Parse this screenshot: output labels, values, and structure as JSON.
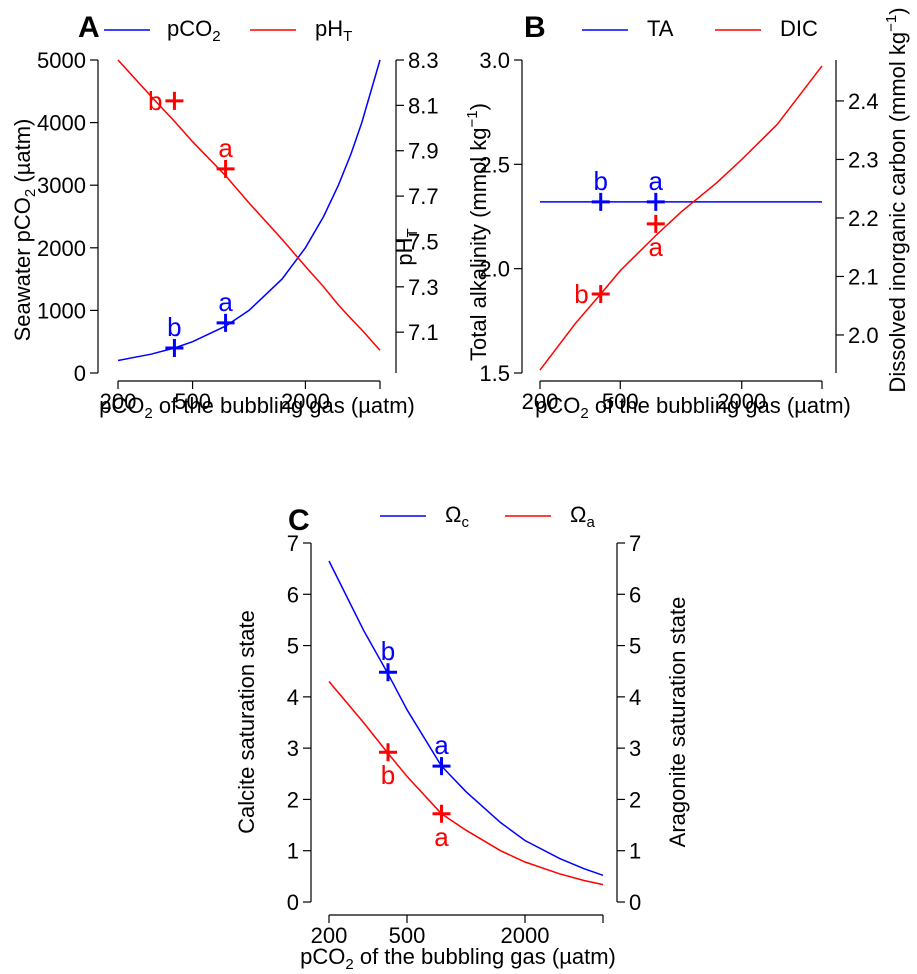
{
  "chart_data": [
    {
      "panel": "A",
      "type": "line",
      "x": [
        200,
        300,
        400,
        500,
        750,
        1000,
        1500,
        2000,
        2500,
        3000,
        3500,
        4000,
        5000
      ],
      "x_scale": "log",
      "xlabel_main": "pCO",
      "xlabel_sub": "2",
      "xlabel_rest": " of the bubbling gas (µatm)",
      "xticks": [
        200,
        500,
        2000
      ],
      "xtick_labels": [
        "200",
        "500",
        "2000"
      ],
      "ylabel_left": "Seawater pCO",
      "ylabel_left_sub": "2",
      "ylabel_left_rest": " (µatm)",
      "ylim_left": [
        0,
        5000
      ],
      "yticks_left": [
        "0",
        "1000",
        "2000",
        "3000",
        "4000",
        "5000"
      ],
      "ylabel_right": "pH",
      "ylabel_right_sub": "T",
      "ylim_right": [
        6.92,
        8.3
      ],
      "yticks_right": [
        "7.1",
        "7.3",
        "7.5",
        "7.7",
        "7.9",
        "8.1",
        "8.3"
      ],
      "series": [
        {
          "name": "pCO",
          "name_sub": "2",
          "color": "#0000ff",
          "axis": "left",
          "values": [
            200,
            300,
            400,
            500,
            750,
            1000,
            1500,
            2000,
            2500,
            3000,
            3500,
            4000,
            5000
          ]
        },
        {
          "name": "pH",
          "name_sub": "T",
          "color": "#ff0000",
          "axis": "right",
          "values": [
            8.3,
            8.14,
            8.03,
            7.94,
            7.79,
            7.67,
            7.51,
            7.39,
            7.3,
            7.22,
            7.16,
            7.11,
            7.02
          ]
        }
      ],
      "points": [
        {
          "label": "b",
          "x": 400,
          "y": 400,
          "axis": "left",
          "color": "#0000ff",
          "label_pos": "above"
        },
        {
          "label": "a",
          "x": 750,
          "y": 800,
          "axis": "left",
          "color": "#0000ff",
          "label_pos": "above"
        },
        {
          "label": "b",
          "x": 400,
          "y": 8.12,
          "axis": "right",
          "color": "#ff0000",
          "label_pos": "left"
        },
        {
          "label": "a",
          "x": 750,
          "y": 7.82,
          "axis": "right",
          "color": "#ff0000",
          "label_pos": "above"
        }
      ]
    },
    {
      "panel": "B",
      "type": "line",
      "x": [
        200,
        300,
        400,
        500,
        750,
        1000,
        1500,
        2000,
        3000,
        5000
      ],
      "x_scale": "log",
      "xlabel_main": "pCO",
      "xlabel_sub": "2",
      "xlabel_rest": " of the bubbling gas (µatm)",
      "xticks": [
        200,
        500,
        2000
      ],
      "xtick_labels": [
        "200",
        "500",
        "2000"
      ],
      "ylabel_left": "Total alkalinity (mmol kg",
      "ylabel_left_sup": "−1",
      "ylabel_left_rest": ")",
      "ylim_left": [
        1.5,
        3.0
      ],
      "yticks_left": [
        "1.5",
        "2.0",
        "2.5",
        "3.0"
      ],
      "ylabel_right": "Dissolved inorganic carbon (mmol kg",
      "ylabel_right_sup": "−1",
      "ylabel_right_rest": ")",
      "ylim_right": [
        1.935,
        2.47
      ],
      "yticks_right": [
        "2.0",
        "2.1",
        "2.2",
        "2.3",
        "2.4"
      ],
      "series": [
        {
          "name": "TA",
          "color": "#0000ff",
          "axis": "left",
          "values": [
            2.32,
            2.32,
            2.32,
            2.32,
            2.32,
            2.32,
            2.32,
            2.32,
            2.32,
            2.32
          ]
        },
        {
          "name": "DIC",
          "color": "#ff0000",
          "axis": "right",
          "values": [
            1.94,
            2.02,
            2.07,
            2.11,
            2.17,
            2.21,
            2.26,
            2.3,
            2.36,
            2.46
          ]
        }
      ],
      "points": [
        {
          "label": "b",
          "x": 400,
          "y": 2.32,
          "axis": "left",
          "color": "#0000ff",
          "label_pos": "above"
        },
        {
          "label": "a",
          "x": 750,
          "y": 2.32,
          "axis": "left",
          "color": "#0000ff",
          "label_pos": "above"
        },
        {
          "label": "b",
          "x": 400,
          "y": 2.07,
          "axis": "right",
          "color": "#ff0000",
          "label_pos": "left"
        },
        {
          "label": "a",
          "x": 750,
          "y": 2.19,
          "axis": "right",
          "color": "#ff0000",
          "label_pos": "below"
        }
      ]
    },
    {
      "panel": "C",
      "type": "line",
      "x": [
        200,
        300,
        400,
        500,
        750,
        1000,
        1500,
        2000,
        3000,
        4000,
        5000
      ],
      "x_scale": "log",
      "xlabel_main": "pCO",
      "xlabel_sub": "2",
      "xlabel_rest": " of the bubbling gas (µatm)",
      "xticks": [
        200,
        500,
        2000
      ],
      "xtick_labels": [
        "200",
        "500",
        "2000"
      ],
      "ylabel_left": "Calcite saturation state",
      "ylim_left": [
        0,
        7
      ],
      "yticks_left": [
        "0",
        "1",
        "2",
        "3",
        "4",
        "5",
        "6",
        "7"
      ],
      "ylabel_right": "Aragonite saturation state",
      "ylim_right": [
        0,
        7
      ],
      "yticks_right": [
        "0",
        "1",
        "2",
        "3",
        "4",
        "5",
        "6",
        "7"
      ],
      "series": [
        {
          "name": "Ω",
          "name_sub": "c",
          "color": "#0000ff",
          "axis": "left",
          "values": [
            6.65,
            5.3,
            4.45,
            3.75,
            2.65,
            2.15,
            1.55,
            1.2,
            0.85,
            0.65,
            0.52
          ]
        },
        {
          "name": "Ω",
          "name_sub": "a",
          "color": "#ff0000",
          "axis": "right",
          "values": [
            4.3,
            3.5,
            2.9,
            2.45,
            1.72,
            1.4,
            1.0,
            0.78,
            0.55,
            0.42,
            0.34
          ]
        }
      ],
      "points": [
        {
          "label": "b",
          "x": 400,
          "y": 4.48,
          "axis": "left",
          "color": "#0000ff",
          "label_pos": "above"
        },
        {
          "label": "a",
          "x": 750,
          "y": 2.65,
          "axis": "left",
          "color": "#0000ff",
          "label_pos": "above"
        },
        {
          "label": "b",
          "x": 400,
          "y": 2.92,
          "axis": "right",
          "color": "#ff0000",
          "label_pos": "below"
        },
        {
          "label": "a",
          "x": 750,
          "y": 1.72,
          "axis": "right",
          "color": "#ff0000",
          "label_pos": "below"
        }
      ]
    }
  ]
}
